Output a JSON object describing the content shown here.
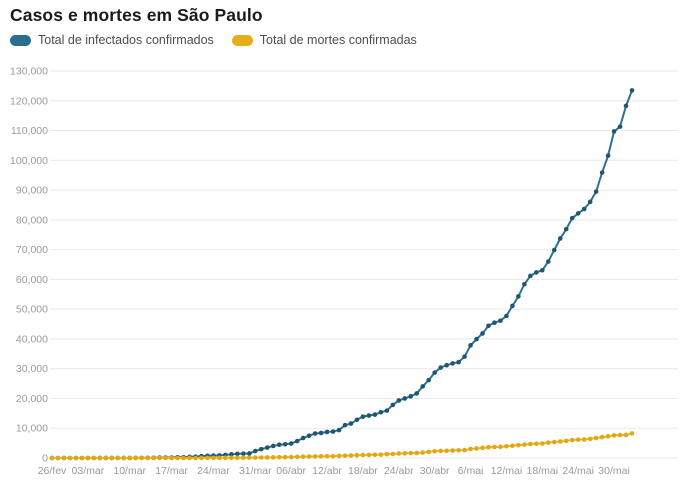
{
  "page": {
    "title": "Casos e mortes em São Paulo"
  },
  "legend": [
    {
      "label": "Total de infectados confirmados",
      "color": "#2b6d8c"
    },
    {
      "label": "Total de mortes confirmadas",
      "color": "#e8ae19"
    }
  ],
  "colors": {
    "background": "#ffffff",
    "title_text": "#1b1b1b",
    "legend_text": "#4d4d4d",
    "gridline": "#e9e9e9",
    "axis_text": "#9a9a9a",
    "cases_line": "#31708f",
    "cases_dot": "#20566f",
    "deaths_line": "#edb82e",
    "deaths_dot": "#e2a812"
  },
  "chart_data": {
    "type": "line",
    "title": "Casos e mortes em São Paulo",
    "xlabel": "",
    "ylabel": "",
    "ylim": [
      0,
      130000
    ],
    "grid": "horizontal",
    "legend_position": "top-left",
    "marker": "dot",
    "dates": [
      "2020-02-26",
      "2020-02-27",
      "2020-02-28",
      "2020-02-29",
      "2020-03-01",
      "2020-03-02",
      "2020-03-03",
      "2020-03-04",
      "2020-03-05",
      "2020-03-06",
      "2020-03-07",
      "2020-03-08",
      "2020-03-09",
      "2020-03-10",
      "2020-03-11",
      "2020-03-12",
      "2020-03-13",
      "2020-03-14",
      "2020-03-15",
      "2020-03-16",
      "2020-03-17",
      "2020-03-18",
      "2020-03-19",
      "2020-03-20",
      "2020-03-21",
      "2020-03-22",
      "2020-03-23",
      "2020-03-24",
      "2020-03-25",
      "2020-03-26",
      "2020-03-27",
      "2020-03-28",
      "2020-03-29",
      "2020-03-30",
      "2020-03-31",
      "2020-04-01",
      "2020-04-02",
      "2020-04-03",
      "2020-04-04",
      "2020-04-05",
      "2020-04-06",
      "2020-04-07",
      "2020-04-08",
      "2020-04-09",
      "2020-04-10",
      "2020-04-11",
      "2020-04-12",
      "2020-04-13",
      "2020-04-14",
      "2020-04-15",
      "2020-04-16",
      "2020-04-17",
      "2020-04-18",
      "2020-04-19",
      "2020-04-20",
      "2020-04-21",
      "2020-04-22",
      "2020-04-23",
      "2020-04-24",
      "2020-04-25",
      "2020-04-26",
      "2020-04-27",
      "2020-04-28",
      "2020-04-29",
      "2020-04-30",
      "2020-05-01",
      "2020-05-02",
      "2020-05-03",
      "2020-05-04",
      "2020-05-05",
      "2020-05-06",
      "2020-05-07",
      "2020-05-08",
      "2020-05-09",
      "2020-05-10",
      "2020-05-11",
      "2020-05-12",
      "2020-05-13",
      "2020-05-14",
      "2020-05-15",
      "2020-05-16",
      "2020-05-17",
      "2020-05-18",
      "2020-05-19",
      "2020-05-20",
      "2020-05-21",
      "2020-05-22",
      "2020-05-23",
      "2020-05-24",
      "2020-05-25",
      "2020-05-26",
      "2020-05-27",
      "2020-05-28",
      "2020-05-29",
      "2020-05-30",
      "2020-05-31",
      "2020-06-01",
      "2020-06-02"
    ],
    "series": [
      {
        "name": "Total de infectados confirmados",
        "color": "#31708f",
        "values": [
          1,
          1,
          2,
          2,
          2,
          2,
          2,
          3,
          6,
          10,
          12,
          16,
          16,
          19,
          30,
          42,
          56,
          65,
          136,
          152,
          164,
          240,
          286,
          396,
          459,
          631,
          745,
          810,
          862,
          1052,
          1223,
          1406,
          1451,
          1517,
          2339,
          2981,
          3506,
          4048,
          4466,
          4620,
          4866,
          5682,
          6708,
          7480,
          8216,
          8419,
          8755,
          8895,
          9371,
          11043,
          11568,
          12841,
          13894,
          14267,
          14580,
          15385,
          15914,
          17826,
          19326,
          20004,
          20715,
          21696,
          24041,
          26158,
          28698,
          30374,
          31174,
          31772,
          32187,
          34053,
          37853,
          39928,
          41830,
          44411,
          45444,
          46131,
          47719,
          51097,
          54286,
          58378,
          61183,
          62345,
          63066,
          65995,
          69859,
          73739,
          76871,
          80558,
          82161,
          83625,
          86017,
          89483,
          95865,
          101556,
          109698,
          111296,
          118295,
          123483
        ]
      },
      {
        "name": "Total de mortes confirmadas",
        "color": "#e8ae19",
        "values": [
          0,
          0,
          0,
          0,
          0,
          0,
          0,
          0,
          0,
          0,
          0,
          0,
          0,
          0,
          0,
          0,
          0,
          0,
          0,
          0,
          1,
          4,
          5,
          9,
          15,
          22,
          30,
          40,
          48,
          58,
          68,
          84,
          98,
          113,
          136,
          164,
          188,
          219,
          260,
          275,
          304,
          371,
          428,
          496,
          540,
          560,
          588,
          608,
          695,
          778,
          853,
          928,
          1015,
          1037,
          1093,
          1135,
          1281,
          1345,
          1512,
          1560,
          1667,
          1700,
          1825,
          2049,
          2247,
          2375,
          2425,
          2511,
          2586,
          2654,
          3045,
          3206,
          3416,
          3608,
          3709,
          3743,
          3949,
          4118,
          4315,
          4501,
          4688,
          4823,
          4851,
          5147,
          5363,
          5558,
          5773,
          6045,
          6163,
          6220,
          6423,
          6712,
          7017,
          7275,
          7615,
          7716,
          7734,
          8276
        ]
      }
    ],
    "y_ticks": [
      0,
      10000,
      20000,
      30000,
      40000,
      50000,
      60000,
      70000,
      80000,
      90000,
      100000,
      110000,
      120000,
      130000
    ],
    "x_tick_labels": [
      "26/fev",
      "03/mar",
      "10/mar",
      "17/mar",
      "24/mar",
      "31/mar",
      "06/abr",
      "12/abr",
      "18/abr",
      "24/abr",
      "30/abr",
      "6/mai",
      "12/mai",
      "18/mai",
      "24/mai",
      "30/mai"
    ],
    "x_tick_day_index": [
      0,
      6,
      13,
      20,
      27,
      34,
      40,
      46,
      52,
      58,
      64,
      70,
      76,
      82,
      88,
      94
    ]
  }
}
